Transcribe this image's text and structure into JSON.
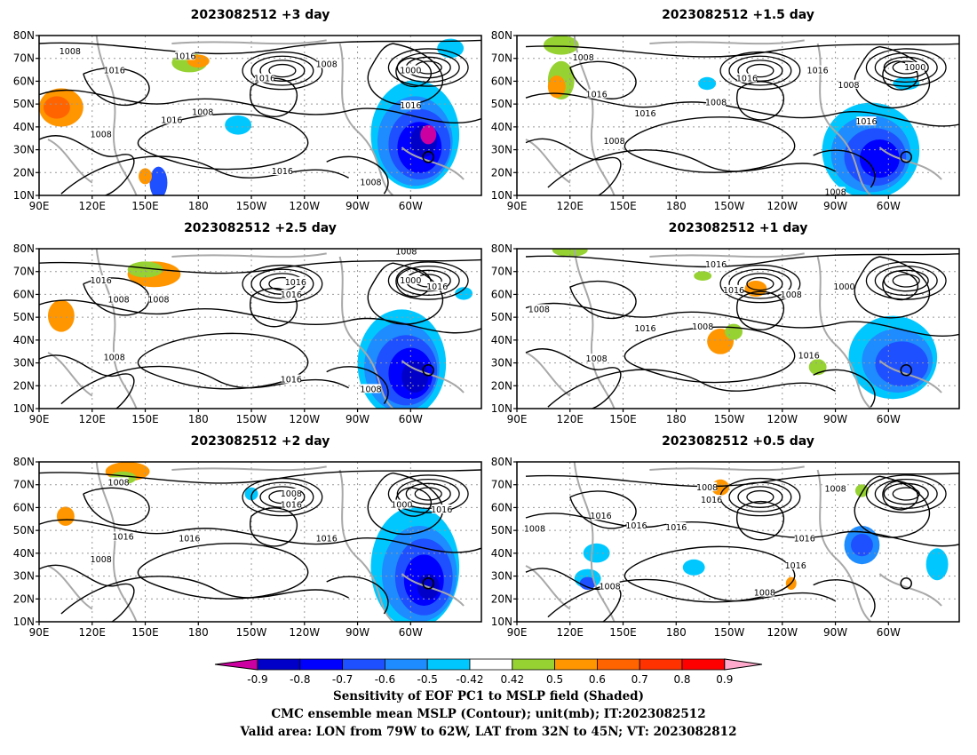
{
  "lat_labels": [
    "80N",
    "70N",
    "60N",
    "50N",
    "40N",
    "30N",
    "20N",
    "10N"
  ],
  "lon_labels": [
    "90E",
    "120E",
    "150E",
    "180",
    "150W",
    "120W",
    "90W",
    "60W"
  ],
  "panels": [
    {
      "id": "p3",
      "title": "2023082512 +3 day",
      "contour_labels": [
        "1008",
        "1016",
        "1008",
        "1000",
        "1016",
        "1016",
        "1008",
        "1016",
        "1016",
        "1016",
        "1008",
        "1008"
      ]
    },
    {
      "id": "p1_5",
      "title": "2023082512 +1.5 day",
      "contour_labels": [
        "1008",
        "1016",
        "1016",
        "1000",
        "1008",
        "1016",
        "1016",
        "1008",
        "1016",
        "1008",
        "1008"
      ]
    },
    {
      "id": "p2_5",
      "title": "2023082512 +2.5 day",
      "contour_labels": [
        "1016",
        "1008",
        "1016",
        "1008",
        "1016",
        "1008",
        "1000",
        "1016",
        "1008",
        "1016",
        "1008"
      ]
    },
    {
      "id": "p1",
      "title": "2023082512 +1 day",
      "contour_labels": [
        "1016",
        "1016",
        "1008",
        "1000",
        "1008",
        "1016",
        "1008",
        "1008",
        "1016"
      ]
    },
    {
      "id": "p2",
      "title": "2023082512 +2 day",
      "contour_labels": [
        "1008",
        "1016",
        "1008",
        "1000",
        "1016",
        "1016",
        "1016",
        "1008",
        "1016"
      ]
    },
    {
      "id": "p0_5",
      "title": "2023082512 +0.5 day",
      "contour_labels": [
        "1008",
        "1016",
        "1008",
        "1016",
        "1016",
        "1016",
        "1008",
        "1008",
        "1016",
        "1008",
        "1016"
      ]
    }
  ],
  "colorbar": {
    "colors": [
      "#cc00a0",
      "#0000c8",
      "#0000ff",
      "#1e50ff",
      "#1e8cff",
      "#00c8ff",
      "#ffffff",
      "#96d232",
      "#ff9600",
      "#ff6400",
      "#ff3200",
      "#ff0000",
      "#ffaacc"
    ],
    "ticks": [
      "-0.9",
      "-0.8",
      "-0.7",
      "-0.6",
      "-0.5",
      "-0.42",
      "0.42",
      "0.5",
      "0.6",
      "0.7",
      "0.8",
      "0.9"
    ]
  },
  "caption": {
    "line1": "Sensitivity of EOF PC1 to MSLP field (Shaded)",
    "line2": "CMC ensemble mean MSLP (Contour); unit(mb); IT:2023082512",
    "line3": "Valid area: LON from 79W to 62W, LAT from 32N to 45N; VT: 2023082812"
  }
}
